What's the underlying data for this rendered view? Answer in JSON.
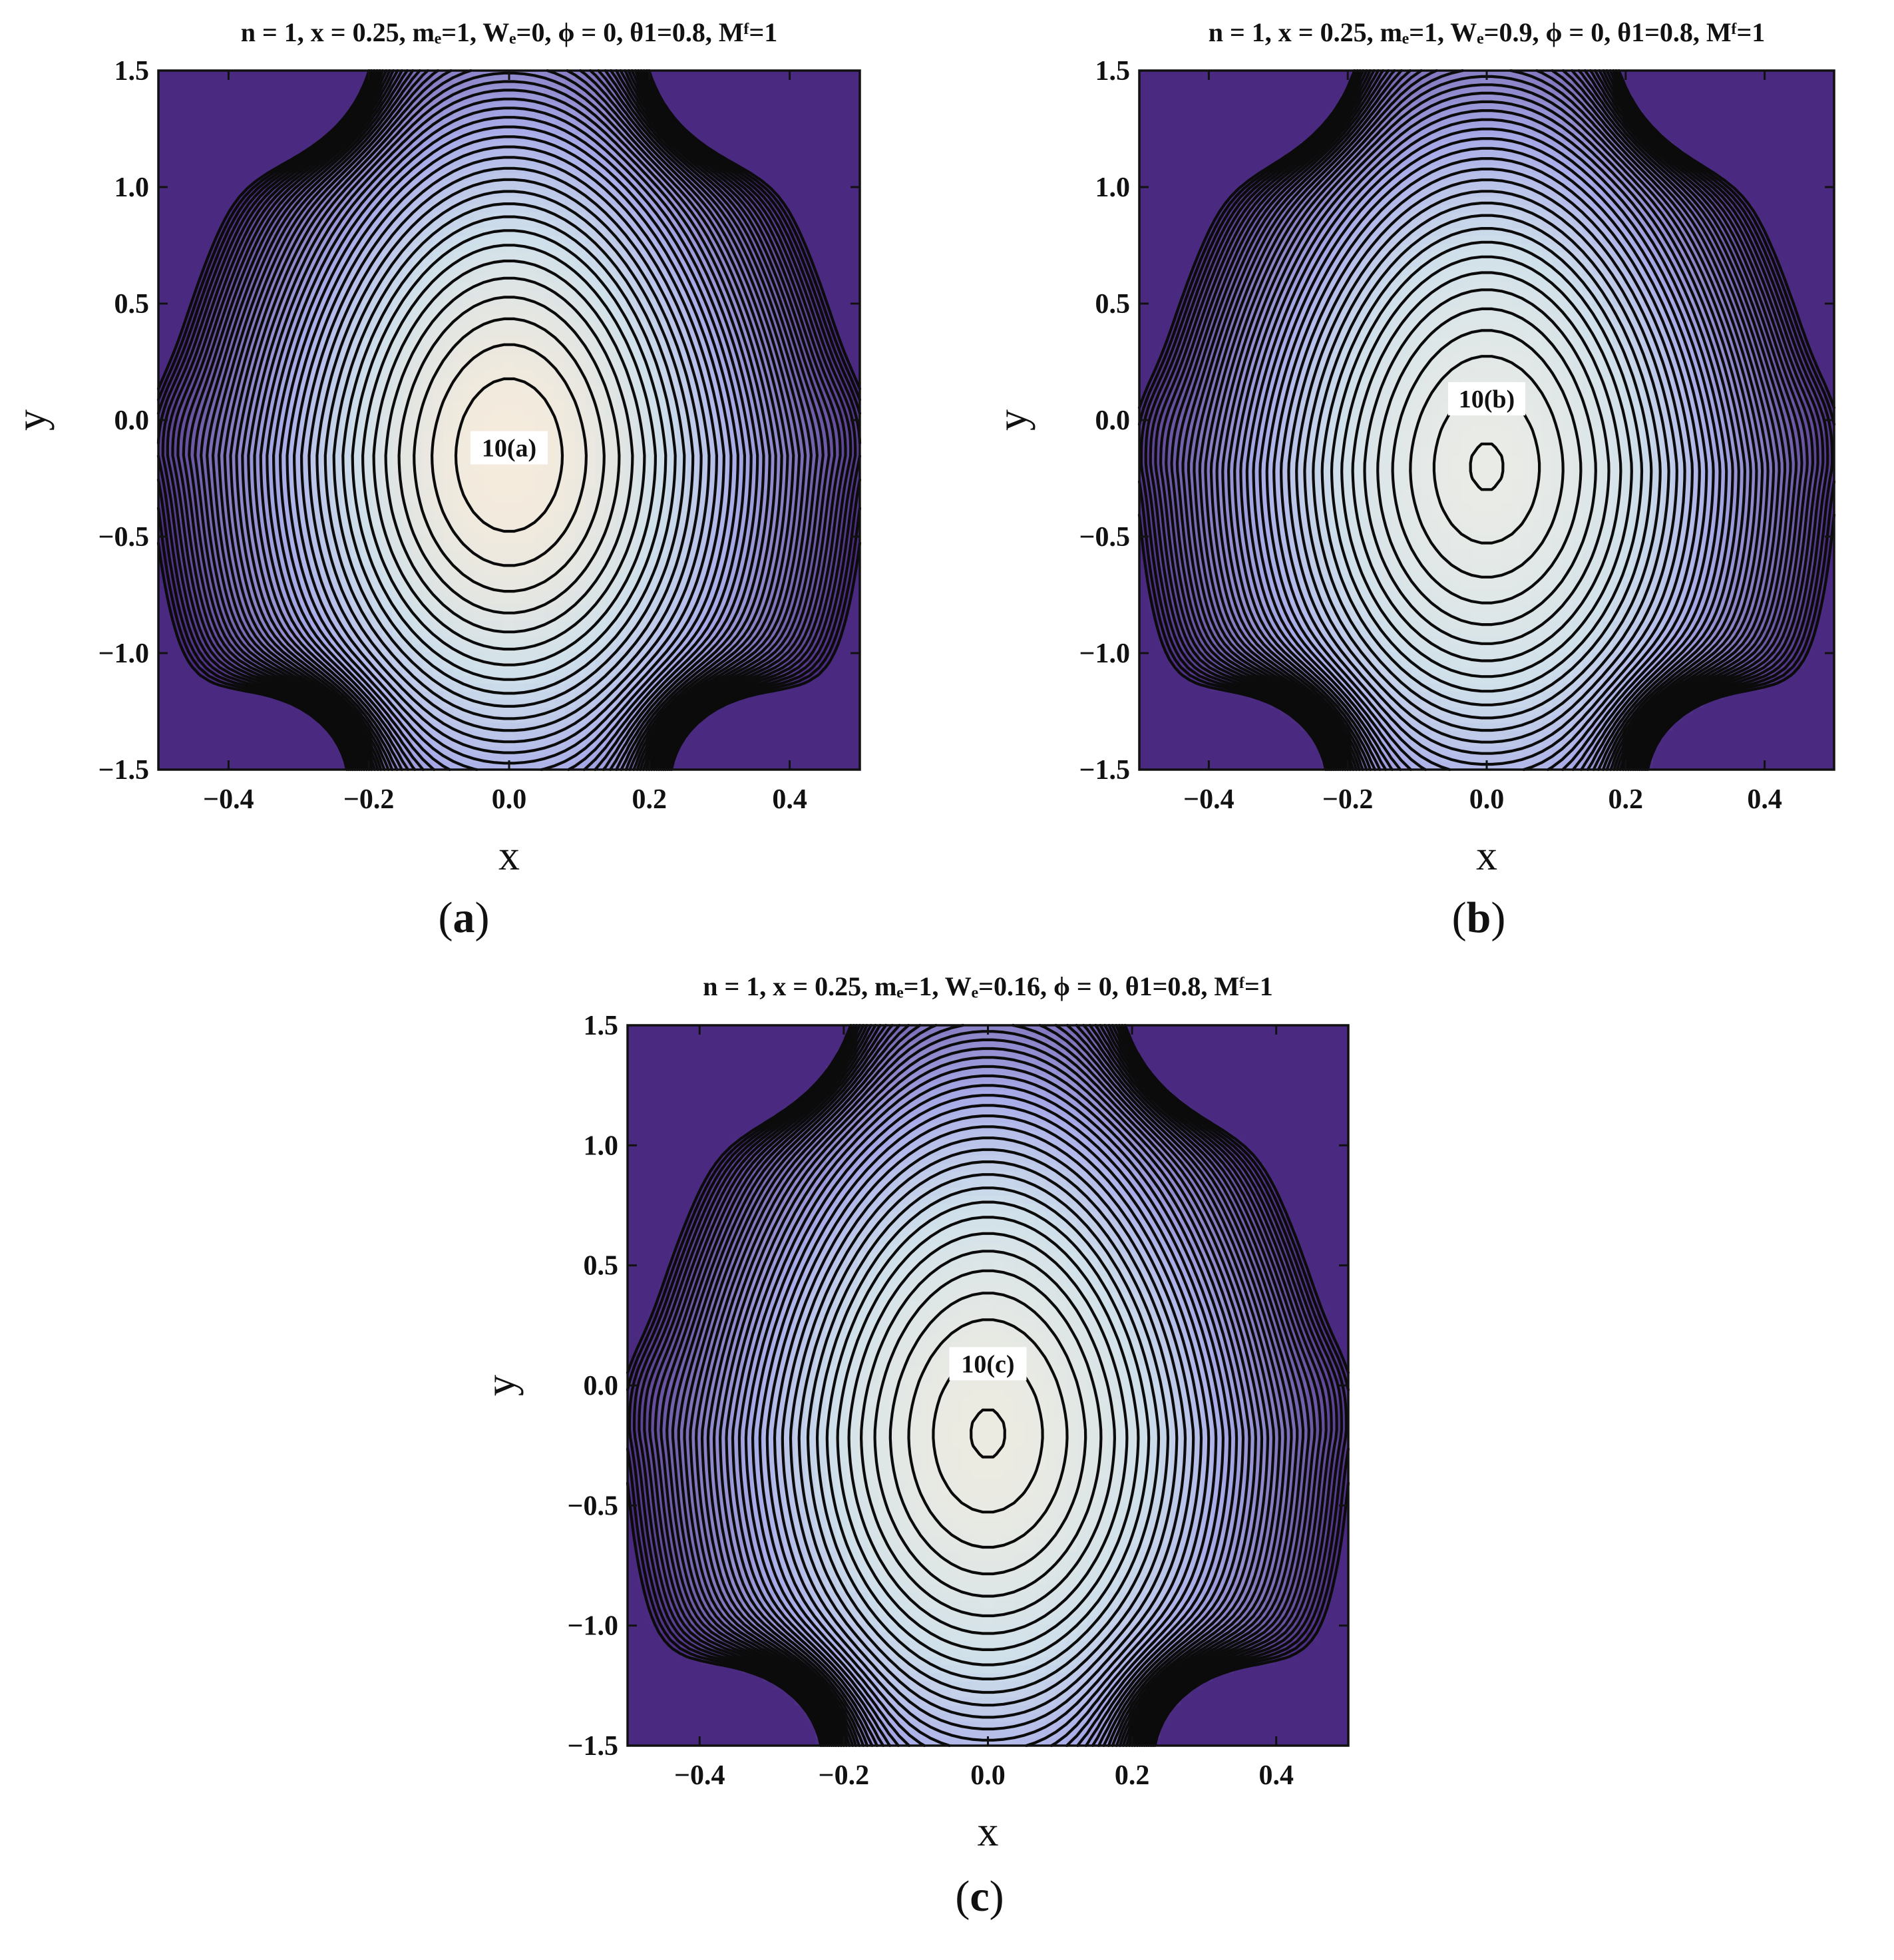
{
  "chart_data": [
    {
      "type": "contour",
      "panel_id": "a",
      "title": "n = 1, x = 0.25, mₑ=1, Wₑ=0, ϕ = 0, θ1=0.8, Mᶠ=1",
      "xlabel": "x",
      "ylabel": "y",
      "xlim": [
        -0.5,
        0.5
      ],
      "ylim": [
        -1.5,
        1.5
      ],
      "x_ticks": [
        "-0.4",
        "-0.2",
        "0.0",
        "0.2",
        "0.4"
      ],
      "y_ticks": [
        "-1.5",
        "-1.0",
        "-0.5",
        "0.0",
        "0.5",
        "1.0",
        "1.5"
      ],
      "annotation": "10(a)",
      "caption_letter": "a",
      "center": [
        0.0,
        -0.15
      ],
      "inner_closed_contour": false,
      "colors": {
        "center": "#f5ebdc",
        "mid": "#cfe0ea",
        "outer": "#a8abe8",
        "corner": "#4a2a80"
      }
    },
    {
      "type": "contour",
      "panel_id": "b",
      "title": "n = 1, x = 0.25, mₑ=1, Wₑ=0.9, ϕ = 0, θ1=0.8, Mᶠ=1",
      "xlabel": "x",
      "ylabel": "y",
      "xlim": [
        -0.5,
        0.5
      ],
      "ylim": [
        -1.5,
        1.5
      ],
      "x_ticks": [
        "-0.4",
        "-0.2",
        "0.0",
        "0.2",
        "0.4"
      ],
      "y_ticks": [
        "-1.5",
        "-1.0",
        "-0.5",
        "0.0",
        "0.5",
        "1.0",
        "1.5"
      ],
      "annotation": "10(b)",
      "caption_letter": "b",
      "center": [
        0.0,
        -0.2
      ],
      "inner_closed_contour": true,
      "colors": {
        "center": "#e9ebe6",
        "mid": "#cfe0ea",
        "outer": "#a8abe8",
        "corner": "#4a2a80"
      }
    },
    {
      "type": "contour",
      "panel_id": "c",
      "title": "n = 1, x = 0.25, mₑ=1, Wₑ=0.16, ϕ = 0, θ1=0.8, Mᶠ=1",
      "xlabel": "x",
      "ylabel": "y",
      "xlim": [
        -0.5,
        0.5
      ],
      "ylim": [
        -1.5,
        1.5
      ],
      "x_ticks": [
        "-0.4",
        "-0.2",
        "0.0",
        "0.2",
        "0.4"
      ],
      "y_ticks": [
        "-1.5",
        "-1.0",
        "-0.5",
        "0.0",
        "0.5",
        "1.0",
        "1.5"
      ],
      "annotation": "10(c)",
      "caption_letter": "c",
      "center": [
        0.0,
        -0.2
      ],
      "inner_closed_contour": true,
      "colors": {
        "center": "#ecebe2",
        "mid": "#cfe0ea",
        "outer": "#a8abe8",
        "corner": "#4a2a80"
      }
    }
  ]
}
